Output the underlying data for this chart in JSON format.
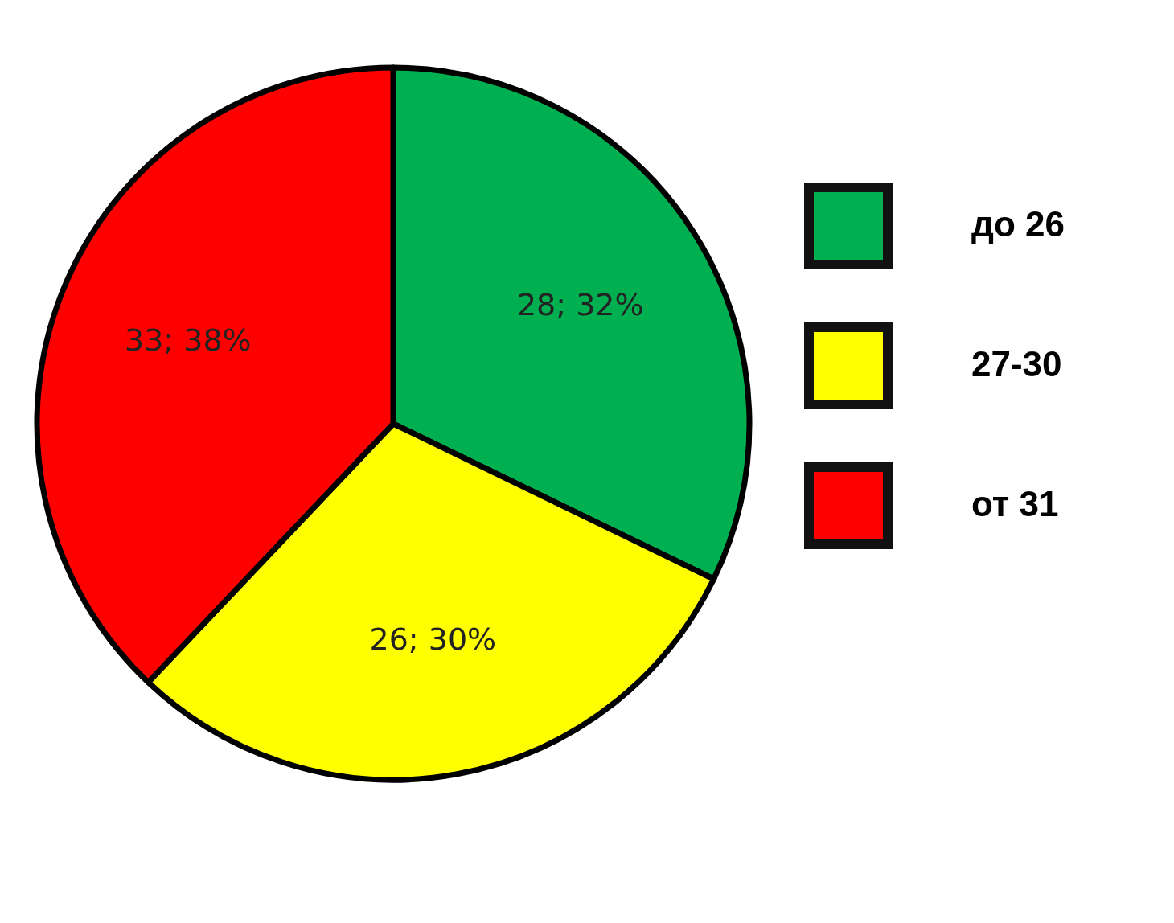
{
  "chart_data": {
    "type": "pie",
    "categories": [
      "до 26",
      "27-30",
      "от 31"
    ],
    "values": [
      28,
      26,
      33
    ],
    "colors": [
      "#00b050",
      "#ffff00",
      "#ff0000"
    ],
    "value_labels": [
      "28; 32%",
      "26; 30%",
      "33; 38%"
    ],
    "legend": "right"
  }
}
